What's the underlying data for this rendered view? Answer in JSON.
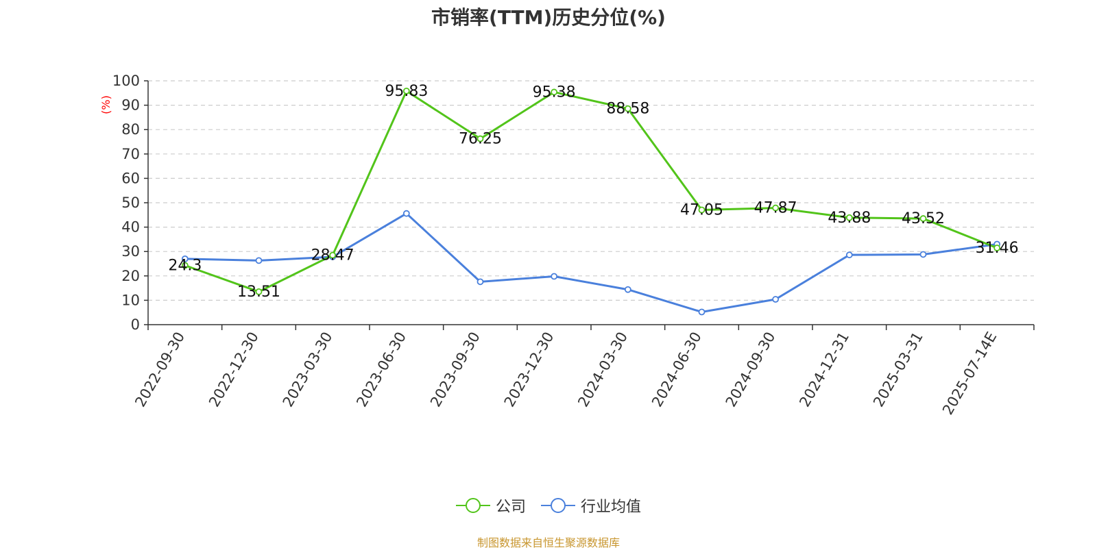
{
  "colors": {
    "company": "#52c41a",
    "industry": "#4a80dc",
    "axis": "#333333",
    "grid": "#cccccc",
    "ylabel": "#ff0000",
    "source": "#c8962f"
  },
  "chart_data": {
    "type": "line",
    "title": "市销率(TTM)历史分位(%)",
    "ylabel": "(%)",
    "xlabel": "",
    "ylim": [
      0,
      100
    ],
    "yticks": [
      0,
      10,
      20,
      30,
      40,
      50,
      60,
      70,
      80,
      90,
      100
    ],
    "grid": true,
    "legend_position": "bottom",
    "categories": [
      "2022-09-30",
      "2022-12-30",
      "2023-03-30",
      "2023-06-30",
      "2023-09-30",
      "2023-12-30",
      "2024-03-30",
      "2024-06-30",
      "2024-09-30",
      "2024-12-31",
      "2025-03-31",
      "2025-07-14E"
    ],
    "series": [
      {
        "name": "公司",
        "color_key": "company",
        "values": [
          24.3,
          13.51,
          28.47,
          95.83,
          76.25,
          95.38,
          88.58,
          47.05,
          47.87,
          43.88,
          43.52,
          31.46
        ],
        "labels": [
          "24.3",
          "13.51",
          "28.47",
          "95.83",
          "76.25",
          "95.38",
          "88.58",
          "47.05",
          "47.87",
          "43.88",
          "43.52",
          "31.46"
        ]
      },
      {
        "name": "行业均值",
        "color_key": "industry",
        "values": [
          27.0,
          26.3,
          27.8,
          45.6,
          17.6,
          19.8,
          14.4,
          5.2,
          10.4,
          28.6,
          28.8,
          33.0
        ]
      }
    ]
  },
  "source": "制图数据来自恒生聚源数据库"
}
